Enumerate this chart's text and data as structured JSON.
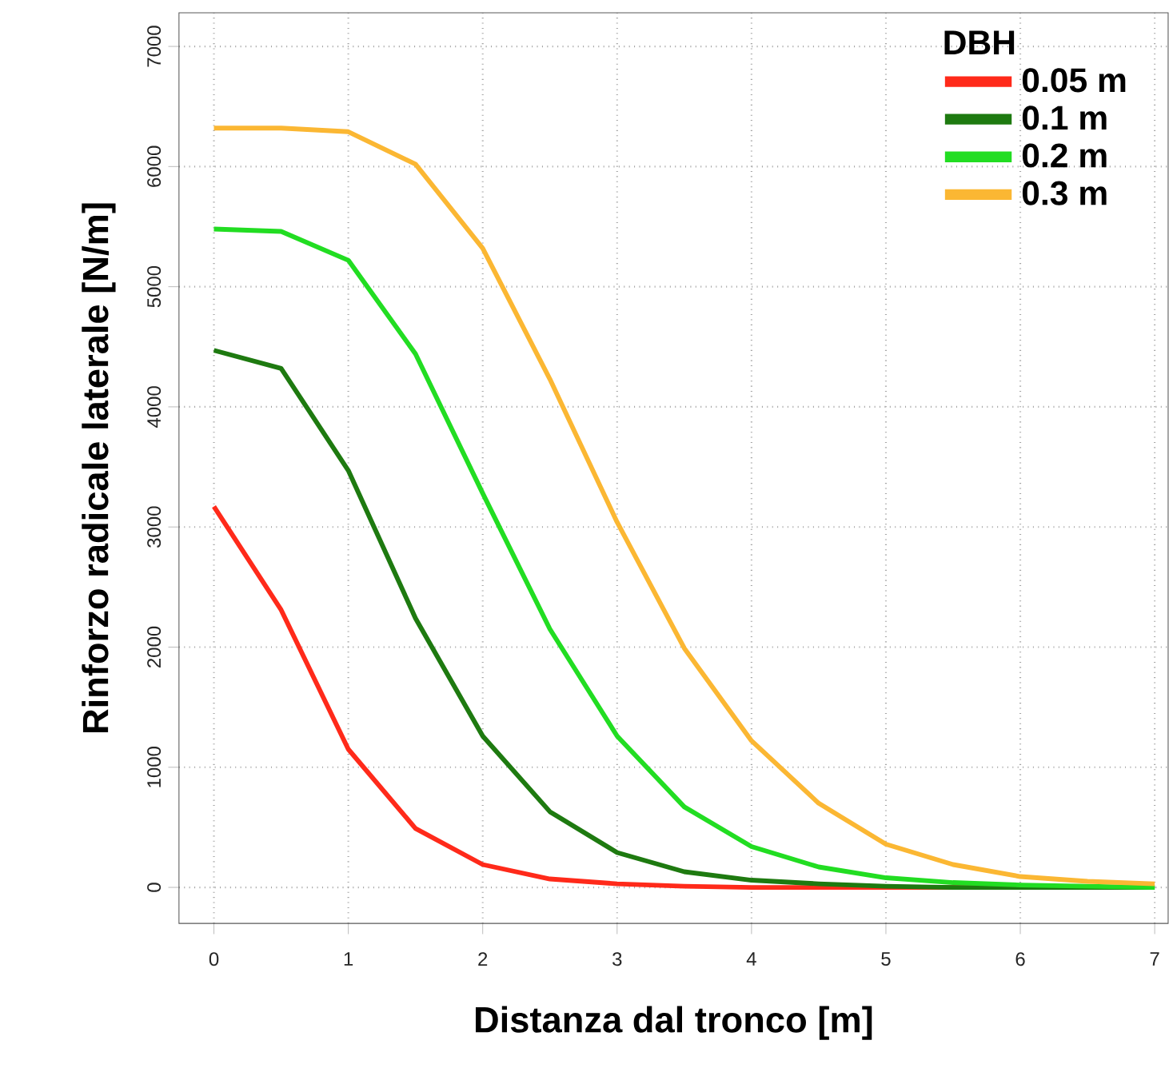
{
  "chart_data": {
    "type": "line",
    "xlabel": "Distanza dal tronco [m]",
    "ylabel": "Rinforzo radicale laterale  [N/m]",
    "legend_title": "DBH",
    "x": [
      0,
      0.5,
      1,
      1.5,
      2,
      2.5,
      3,
      3.5,
      4,
      4.5,
      5,
      5.5,
      6,
      6.5,
      7
    ],
    "series": [
      {
        "name": "0.05 m",
        "color": "#ff2a1a",
        "values": [
          3170,
          2310,
          1150,
          490,
          190,
          70,
          30,
          10,
          0,
          0,
          0,
          0,
          0,
          null,
          null
        ]
      },
      {
        "name": "0.1   m",
        "color": "#1e7a10",
        "values": [
          4470,
          4320,
          3470,
          2240,
          1260,
          630,
          290,
          130,
          60,
          30,
          10,
          0,
          0,
          0,
          0
        ]
      },
      {
        "name": "0.2   m",
        "color": "#22dd22",
        "values": [
          5480,
          5460,
          5220,
          4440,
          3280,
          2150,
          1260,
          670,
          340,
          170,
          80,
          40,
          20,
          10,
          0
        ]
      },
      {
        "name": "0.3   m",
        "color": "#fbb733",
        "values": [
          6320,
          6320,
          6290,
          6020,
          5320,
          4230,
          3040,
          1990,
          1220,
          700,
          360,
          190,
          90,
          50,
          30
        ]
      }
    ],
    "xlim": [
      -0.26,
      7.1
    ],
    "ylim": [
      -300,
      7280
    ],
    "xticks": [
      0,
      1,
      2,
      3,
      4,
      5,
      6,
      7
    ],
    "yticks": [
      0,
      1000,
      2000,
      3000,
      4000,
      5000,
      6000,
      7000
    ],
    "grid": true,
    "legend": "top right",
    "marker": "none",
    "line_style": "solid"
  }
}
